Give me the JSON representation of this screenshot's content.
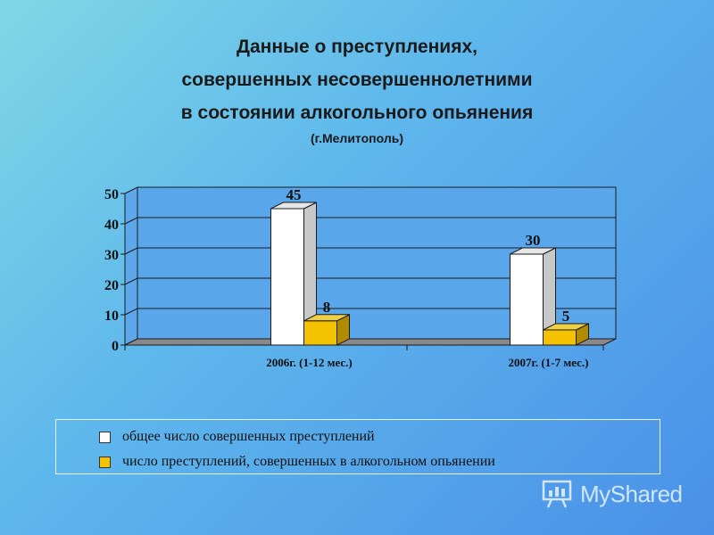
{
  "title": {
    "lines": [
      "Данные о преступлениях,",
      "совершенных несовершеннолетними",
      "в состоянии алкогольного опьянения"
    ],
    "subtitle": "(г.Мелитополь)"
  },
  "chart_data": {
    "type": "bar",
    "categories": [
      "2006г. (1-12 мес.)",
      "2007г. (1-7 мес.)"
    ],
    "series": [
      {
        "name": "общее число совершенных преступлений",
        "values": [
          45,
          30
        ],
        "color": "#ffffff"
      },
      {
        "name": "число преступлений, совершенных в алкогольном опьянении",
        "values": [
          8,
          5
        ],
        "color": "#f5c200"
      }
    ],
    "ylim": [
      0,
      50
    ],
    "yticks": [
      "0",
      "10",
      "20",
      "30",
      "40",
      "50"
    ],
    "grid": true,
    "legend_position": "bottom"
  },
  "legend": {
    "items": [
      {
        "label": "общее число совершенных преступлений",
        "color": "#ffffff"
      },
      {
        "label": "число преступлений, совершенных в алкогольном опьянении",
        "color": "#f5c200"
      }
    ]
  },
  "watermark": {
    "text": "MyShared",
    "icon": "presentation-icon"
  }
}
